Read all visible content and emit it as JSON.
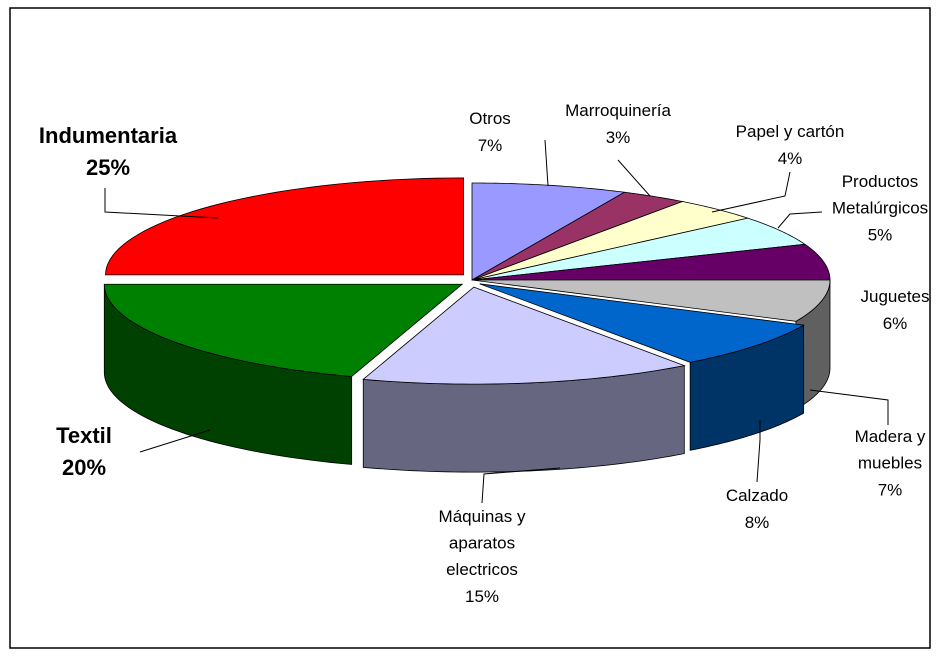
{
  "chart_data": {
    "type": "pie3d",
    "categories": [
      "Otros",
      "Marroquinería",
      "Papel y cartón",
      "Productos Metalúrgicos",
      "Juguetes",
      "Madera y muebles",
      "Calzado",
      "Máquinas y aparatos electricos",
      "Textil",
      "Indumentaria"
    ],
    "values": [
      7,
      3,
      4,
      5,
      6,
      7,
      8,
      15,
      20,
      25
    ],
    "value_labels": [
      "7%",
      "3%",
      "4%",
      "5%",
      "6%",
      "7%",
      "8%",
      "15%",
      "20%",
      "25%"
    ],
    "colors": [
      "#9999ff",
      "#993366",
      "#ffffcc",
      "#ccffff",
      "#660066",
      "#c0c0c0",
      "#0066cc",
      "#ccccff",
      "#008000",
      "#ff0000"
    ]
  }
}
